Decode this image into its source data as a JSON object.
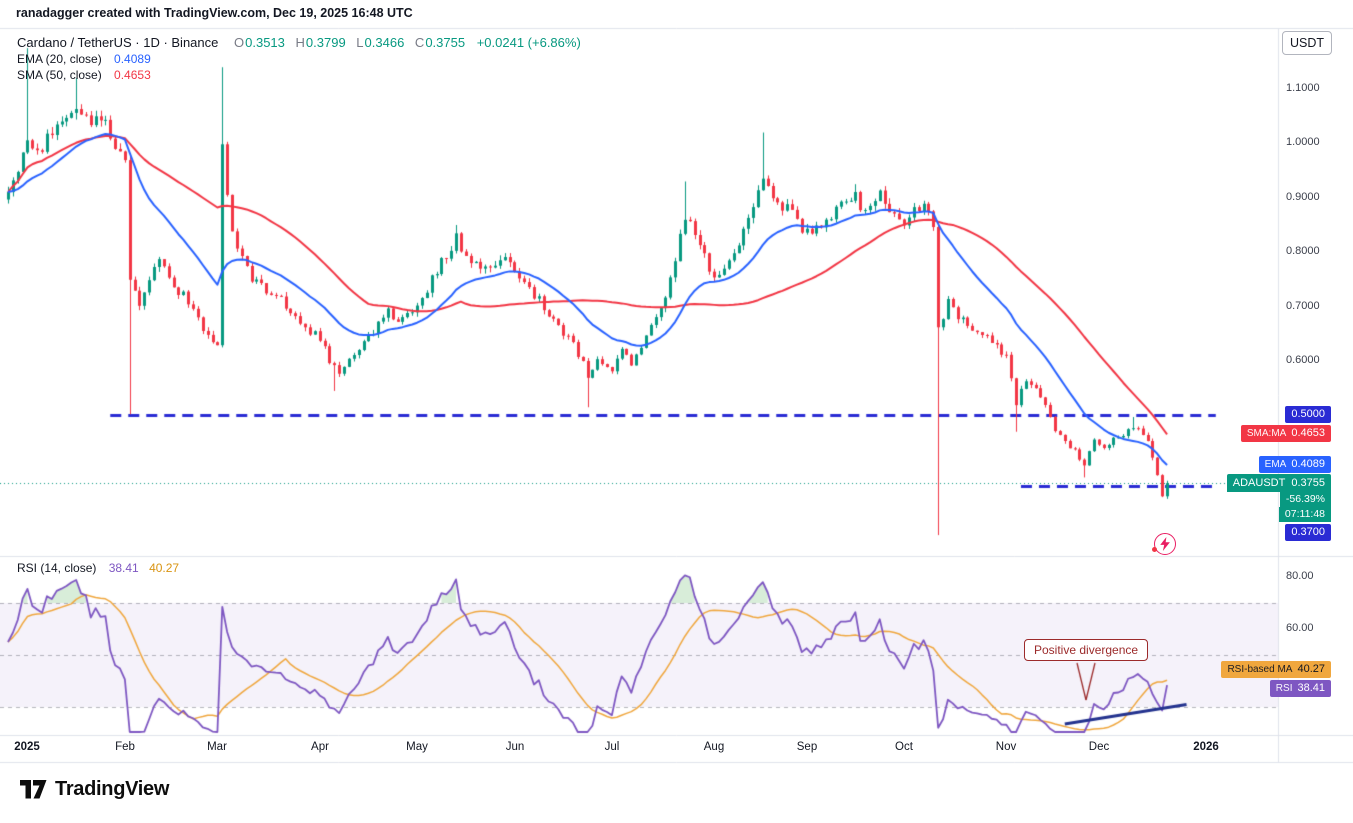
{
  "attribution": "ranadagger created with TradingView.com, Dec 19, 2025 16:48 UTC",
  "symbol_bar": {
    "title": "Cardano / TetherUS · 1D · Binance",
    "o_label": "O",
    "o": "0.3513",
    "h_label": "H",
    "h": "0.3799",
    "l_label": "L",
    "l": "0.3466",
    "c_label": "C",
    "c": "0.3755",
    "change": "+0.0241 (+6.86%)"
  },
  "indicators": {
    "ema_label": "EMA (20, close)",
    "ema_value": "0.4089",
    "sma_label": "SMA (50, close)",
    "sma_value": "0.4653"
  },
  "rsi_legend": {
    "label": "RSI (14, close)",
    "value": "38.41",
    "ma_value": "40.27"
  },
  "axis": {
    "currency_button": "USDT",
    "price_ticks": [
      "1.1000",
      "1.0000",
      "0.9000",
      "0.8000",
      "0.7000",
      "0.6000"
    ],
    "rsi_ticks": [
      "80.00",
      "60.00"
    ],
    "tags": {
      "level_0_5": "0.5000",
      "sma_name": "SMA:MA",
      "sma_value": "0.4653",
      "ema_name": "EMA",
      "ema_value": "0.4089",
      "symbol_name": "ADAUSDT",
      "symbol_value": "0.3755",
      "symbol_change": "-56.39%",
      "symbol_countdown": "07:11:48",
      "level_0_37": "0.3700",
      "rsi_ma_name": "RSI-based MA",
      "rsi_ma_value": "40.27",
      "rsi_name": "RSI",
      "rsi_value": "38.41"
    }
  },
  "time_axis": [
    "2025",
    "Feb",
    "Mar",
    "Apr",
    "May",
    "Jun",
    "Jul",
    "Aug",
    "Sep",
    "Oct",
    "Nov",
    "Dec",
    "2026"
  ],
  "annotations": {
    "divergence_label": "Positive divergence"
  },
  "branding": {
    "logo_text": "TradingView"
  },
  "colors": {
    "up": "#089981",
    "down": "#F23645",
    "ema": "#2962FF",
    "sma": "#F23645",
    "level_blue": "#2A2BD4",
    "current_price": "#089981",
    "rsi_line": "#7E57C2",
    "rsi_ma": "#F0A73E",
    "band_fill": "rgba(126,87,194,0.08)",
    "band_border": "rgba(120,123,134,0.55)",
    "overbought_fill": "rgba(76,175,80,0.22)",
    "divergence": "#9C2B2B",
    "trendline": "#24338F",
    "separator": "#E0E3EB"
  },
  "chart_data": {
    "type": "candlestick",
    "symbol": "ADAUSDT",
    "interval": "1D",
    "exchange": "Binance",
    "title": "Cardano / TetherUS",
    "price_axis_range": [
      0.28,
      1.18
    ],
    "rsi_axis_range": [
      20,
      86
    ],
    "days": 239,
    "last": {
      "open": 0.3513,
      "high": 0.3799,
      "low": 0.3466,
      "close": 0.3755,
      "change": 0.0241,
      "change_pct": 6.86
    },
    "close_anchors": [
      [
        0,
        0.905
      ],
      [
        2,
        0.96
      ],
      [
        4,
        1.0
      ],
      [
        6,
        0.975
      ],
      [
        8,
        1.005
      ],
      [
        11,
        1.04
      ],
      [
        14,
        1.065
      ],
      [
        17,
        1.03
      ],
      [
        20,
        1.05
      ],
      [
        22,
        0.99
      ],
      [
        24,
        0.96
      ],
      [
        25,
        0.75
      ],
      [
        27,
        0.71
      ],
      [
        29,
        0.755
      ],
      [
        31,
        0.79
      ],
      [
        33,
        0.76
      ],
      [
        35,
        0.73
      ],
      [
        37,
        0.71
      ],
      [
        39,
        0.675
      ],
      [
        41,
        0.64
      ],
      [
        43,
        0.625
      ],
      [
        44,
        1.0
      ],
      [
        45,
        0.9
      ],
      [
        46,
        0.84
      ],
      [
        48,
        0.79
      ],
      [
        50,
        0.75
      ],
      [
        53,
        0.73
      ],
      [
        56,
        0.715
      ],
      [
        59,
        0.685
      ],
      [
        62,
        0.655
      ],
      [
        64,
        0.645
      ],
      [
        66,
        0.595
      ],
      [
        68,
        0.575
      ],
      [
        70,
        0.6
      ],
      [
        72,
        0.625
      ],
      [
        75,
        0.655
      ],
      [
        78,
        0.695
      ],
      [
        80,
        0.67
      ],
      [
        82,
        0.685
      ],
      [
        84,
        0.7
      ],
      [
        86,
        0.73
      ],
      [
        89,
        0.785
      ],
      [
        92,
        0.825
      ],
      [
        94,
        0.79
      ],
      [
        97,
        0.765
      ],
      [
        100,
        0.775
      ],
      [
        102,
        0.785
      ],
      [
        104,
        0.765
      ],
      [
        107,
        0.735
      ],
      [
        110,
        0.7
      ],
      [
        113,
        0.665
      ],
      [
        116,
        0.635
      ],
      [
        119,
        0.575
      ],
      [
        121,
        0.605
      ],
      [
        124,
        0.585
      ],
      [
        126,
        0.615
      ],
      [
        128,
        0.595
      ],
      [
        131,
        0.64
      ],
      [
        134,
        0.7
      ],
      [
        136,
        0.745
      ],
      [
        138,
        0.825
      ],
      [
        139,
        0.87
      ],
      [
        141,
        0.835
      ],
      [
        143,
        0.8
      ],
      [
        145,
        0.745
      ],
      [
        147,
        0.77
      ],
      [
        149,
        0.8
      ],
      [
        152,
        0.865
      ],
      [
        155,
        0.945
      ],
      [
        157,
        0.91
      ],
      [
        159,
        0.885
      ],
      [
        161,
        0.87
      ],
      [
        163,
        0.845
      ],
      [
        165,
        0.835
      ],
      [
        168,
        0.865
      ],
      [
        171,
        0.885
      ],
      [
        174,
        0.9
      ],
      [
        176,
        0.875
      ],
      [
        179,
        0.905
      ],
      [
        182,
        0.865
      ],
      [
        184,
        0.855
      ],
      [
        186,
        0.875
      ],
      [
        188,
        0.885
      ],
      [
        190,
        0.845
      ],
      [
        191,
        0.66
      ],
      [
        193,
        0.705
      ],
      [
        195,
        0.685
      ],
      [
        198,
        0.66
      ],
      [
        201,
        0.64
      ],
      [
        203,
        0.625
      ],
      [
        205,
        0.605
      ],
      [
        207,
        0.525
      ],
      [
        209,
        0.56
      ],
      [
        211,
        0.545
      ],
      [
        213,
        0.515
      ],
      [
        215,
        0.475
      ],
      [
        217,
        0.455
      ],
      [
        219,
        0.435
      ],
      [
        221,
        0.41
      ],
      [
        223,
        0.455
      ],
      [
        225,
        0.445
      ],
      [
        227,
        0.455
      ],
      [
        229,
        0.465
      ],
      [
        231,
        0.475
      ],
      [
        233,
        0.465
      ],
      [
        234,
        0.45
      ],
      [
        235,
        0.425
      ],
      [
        236,
        0.395
      ],
      [
        237,
        0.3513
      ],
      [
        238,
        0.3755
      ]
    ],
    "events": [
      {
        "day": 4,
        "high": 1.175
      },
      {
        "day": 14,
        "high": 1.12
      },
      {
        "day": 25,
        "low": 0.502
      },
      {
        "day": 44,
        "high": 1.14,
        "low": 0.625
      },
      {
        "day": 67,
        "low": 0.545
      },
      {
        "day": 92,
        "high": 0.85
      },
      {
        "day": 119,
        "low": 0.515
      },
      {
        "day": 139,
        "high": 0.93
      },
      {
        "day": 155,
        "high": 1.02
      },
      {
        "day": 174,
        "high": 0.925
      },
      {
        "day": 191,
        "low": 0.28
      },
      {
        "day": 207,
        "low": 0.47
      },
      {
        "day": 221,
        "low": 0.386
      },
      {
        "day": 231,
        "high": 0.497
      },
      {
        "day": 238,
        "high": 0.3799,
        "low": 0.3466
      }
    ],
    "overlays": [
      {
        "type": "EMA",
        "period": 20,
        "last": 0.4089
      },
      {
        "type": "SMA",
        "period": 50,
        "last": 0.4653
      }
    ],
    "levels": [
      {
        "price": 0.5,
        "label": "0.5000",
        "from_day": 21,
        "to_day": 248,
        "style": "dashed"
      },
      {
        "price": 0.37,
        "label": "0.3700",
        "from_day": 208,
        "to_day": 248,
        "style": "dashed"
      }
    ],
    "rsi": {
      "period": 14,
      "last": 38.41,
      "ma_period": 14,
      "ma_last": 40.27,
      "levels": [
        70,
        50,
        30
      ]
    },
    "rsi_trendline": {
      "from": {
        "day": 217,
        "value": 23.5
      },
      "to": {
        "day": 242,
        "value": 31
      }
    },
    "months": {
      "labels": [
        "2025",
        "Feb",
        "Mar",
        "Apr",
        "May",
        "Jun",
        "Jul",
        "Aug",
        "Sep",
        "Oct",
        "Nov",
        "Dec",
        "2026"
      ],
      "days": [
        4,
        24,
        43,
        64,
        84,
        104,
        124,
        145,
        164,
        184,
        205,
        224,
        246
      ]
    }
  }
}
